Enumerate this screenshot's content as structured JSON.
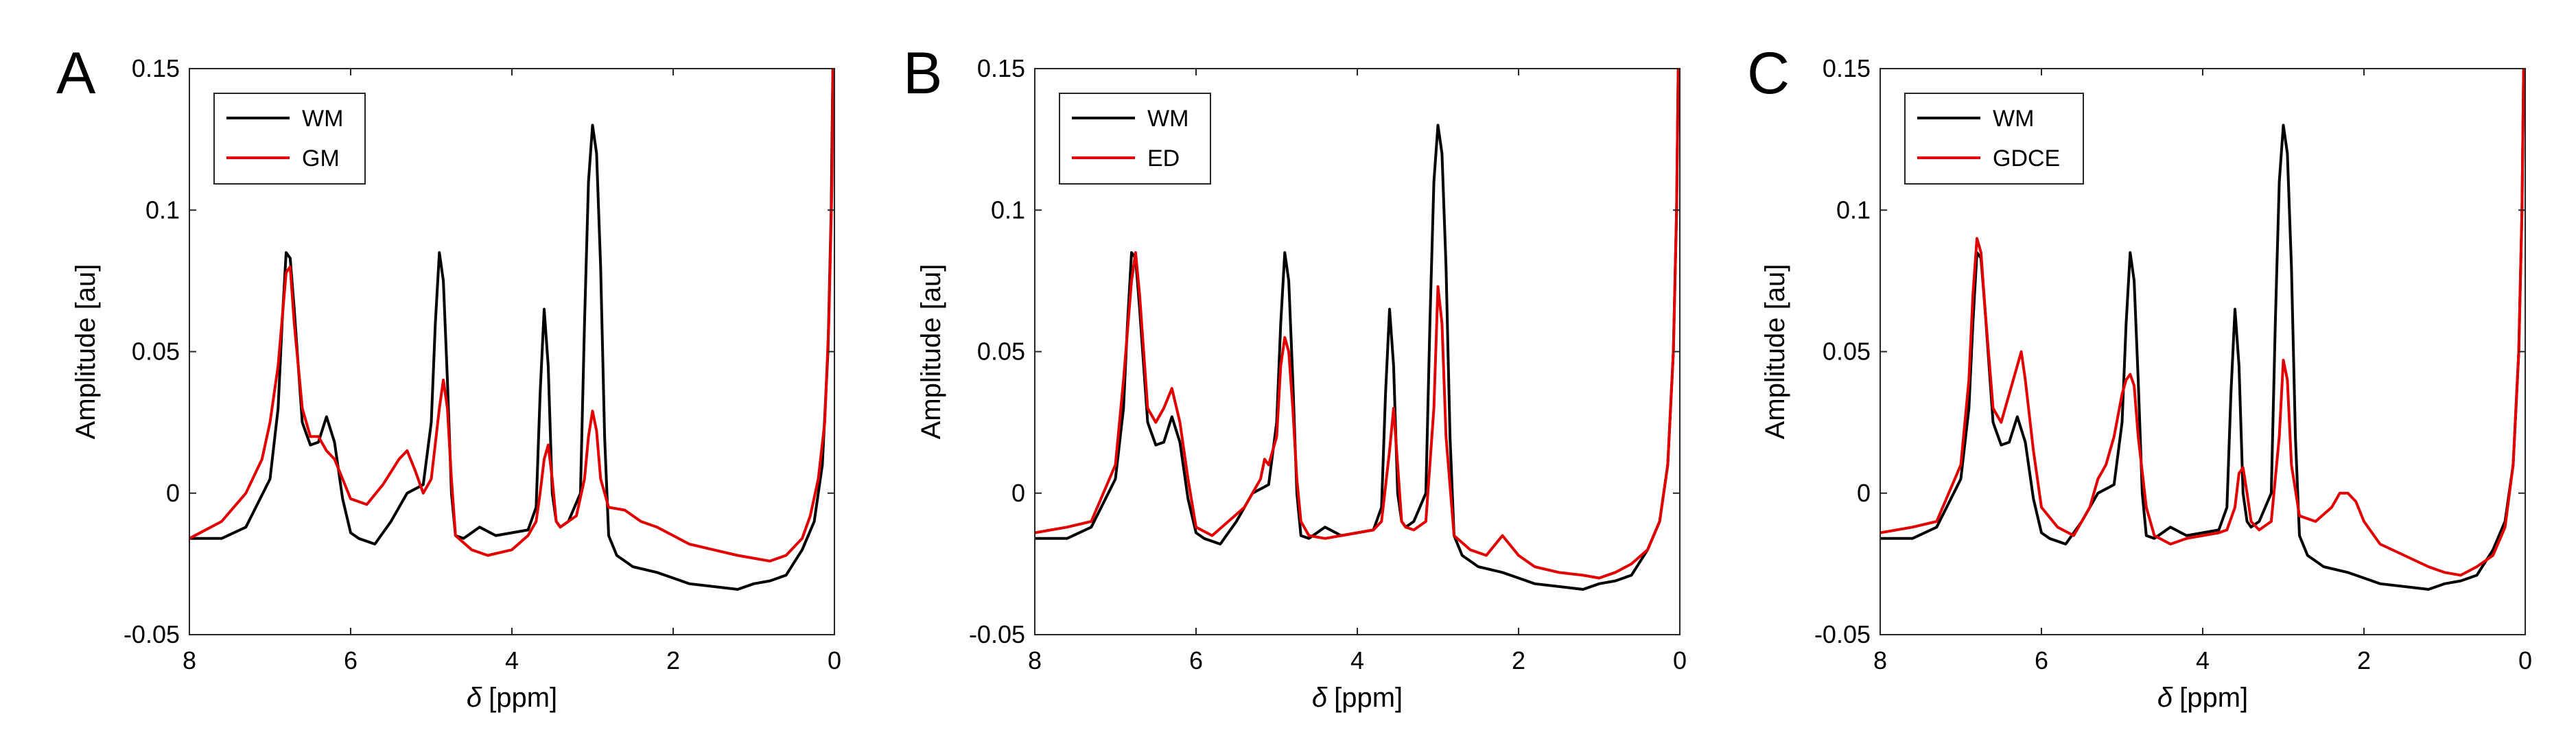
{
  "figure": {
    "description_units": "delta in ppm, amplitude in au"
  },
  "chart_data": [
    {
      "type": "line",
      "panel_label": "A",
      "xlabel_symbol": "δ",
      "xlabel_unit": "[ppm]",
      "ylabel": "Amplitude [au]",
      "xlim": [
        8,
        0
      ],
      "ylim": [
        -0.05,
        0.15
      ],
      "x_reversed": true,
      "xticks": [
        "8",
        "6",
        "4",
        "2",
        "0"
      ],
      "yticks": [
        "-0.05",
        "0",
        "0.05",
        "0.1",
        "0.15"
      ],
      "legend_position": "top-left",
      "series": [
        {
          "name": "WM",
          "color": "#000000",
          "x": [
            8.0,
            7.6,
            7.3,
            7.0,
            6.9,
            6.85,
            6.8,
            6.75,
            6.7,
            6.6,
            6.5,
            6.4,
            6.3,
            6.2,
            6.1,
            6.0,
            5.9,
            5.7,
            5.5,
            5.3,
            5.1,
            5.0,
            4.95,
            4.9,
            4.85,
            4.8,
            4.75,
            4.7,
            4.6,
            4.4,
            4.2,
            4.0,
            3.8,
            3.7,
            3.65,
            3.6,
            3.55,
            3.5,
            3.45,
            3.4,
            3.3,
            3.15,
            3.1,
            3.05,
            3.0,
            2.95,
            2.9,
            2.85,
            2.8,
            2.7,
            2.5,
            2.2,
            2.0,
            1.8,
            1.5,
            1.2,
            1.0,
            0.8,
            0.6,
            0.4,
            0.25,
            0.15,
            0.08,
            0.04,
            0.02
          ],
          "y": [
            -0.016,
            -0.016,
            -0.012,
            0.005,
            0.03,
            0.06,
            0.085,
            0.083,
            0.065,
            0.025,
            0.017,
            0.018,
            0.027,
            0.018,
            -0.002,
            -0.014,
            -0.016,
            -0.018,
            -0.01,
            0.0,
            0.003,
            0.025,
            0.06,
            0.085,
            0.075,
            0.04,
            0.0,
            -0.015,
            -0.016,
            -0.012,
            -0.015,
            -0.014,
            -0.013,
            -0.005,
            0.035,
            0.065,
            0.045,
            0.0,
            -0.01,
            -0.012,
            -0.01,
            0.0,
            0.06,
            0.11,
            0.13,
            0.12,
            0.08,
            0.02,
            -0.015,
            -0.022,
            -0.026,
            -0.028,
            -0.03,
            -0.032,
            -0.033,
            -0.034,
            -0.032,
            -0.031,
            -0.029,
            -0.02,
            -0.01,
            0.01,
            0.05,
            0.1,
            0.15
          ]
        },
        {
          "name": "GM",
          "color": "#e30000",
          "x": [
            8.0,
            7.6,
            7.3,
            7.1,
            7.0,
            6.9,
            6.8,
            6.75,
            6.7,
            6.6,
            6.5,
            6.4,
            6.3,
            6.2,
            6.1,
            6.0,
            5.8,
            5.6,
            5.4,
            5.3,
            5.2,
            5.1,
            5.0,
            4.9,
            4.85,
            4.8,
            4.75,
            4.7,
            4.5,
            4.3,
            4.0,
            3.8,
            3.7,
            3.65,
            3.6,
            3.55,
            3.5,
            3.45,
            3.4,
            3.2,
            3.1,
            3.05,
            3.0,
            2.95,
            2.9,
            2.8,
            2.6,
            2.4,
            2.2,
            2.0,
            1.8,
            1.5,
            1.2,
            1.0,
            0.8,
            0.6,
            0.4,
            0.3,
            0.2,
            0.12,
            0.07,
            0.03,
            0.02
          ],
          "y": [
            -0.016,
            -0.01,
            0.0,
            0.012,
            0.025,
            0.045,
            0.078,
            0.08,
            0.06,
            0.03,
            0.02,
            0.02,
            0.015,
            0.012,
            0.005,
            -0.002,
            -0.004,
            0.003,
            0.012,
            0.015,
            0.008,
            0.0,
            0.005,
            0.03,
            0.04,
            0.03,
            0.005,
            -0.015,
            -0.02,
            -0.022,
            -0.02,
            -0.015,
            -0.01,
            0.0,
            0.012,
            0.017,
            0.005,
            -0.01,
            -0.012,
            -0.008,
            0.005,
            0.02,
            0.029,
            0.022,
            0.005,
            -0.005,
            -0.006,
            -0.01,
            -0.012,
            -0.015,
            -0.018,
            -0.02,
            -0.022,
            -0.023,
            -0.024,
            -0.022,
            -0.016,
            -0.008,
            0.005,
            0.025,
            0.06,
            0.11,
            0.15
          ]
        }
      ]
    },
    {
      "type": "line",
      "panel_label": "B",
      "xlabel_symbol": "δ",
      "xlabel_unit": "[ppm]",
      "ylabel": "Amplitude [au]",
      "xlim": [
        8,
        0
      ],
      "ylim": [
        -0.05,
        0.15
      ],
      "x_reversed": true,
      "xticks": [
        "8",
        "6",
        "4",
        "2",
        "0"
      ],
      "yticks": [
        "-0.05",
        "0",
        "0.05",
        "0.1",
        "0.15"
      ],
      "legend_position": "top-left",
      "series": [
        {
          "name": "WM",
          "color": "#000000",
          "x": [
            8.0,
            7.6,
            7.3,
            7.0,
            6.9,
            6.85,
            6.8,
            6.75,
            6.7,
            6.6,
            6.5,
            6.4,
            6.3,
            6.2,
            6.1,
            6.0,
            5.9,
            5.7,
            5.5,
            5.3,
            5.1,
            5.0,
            4.95,
            4.9,
            4.85,
            4.8,
            4.75,
            4.7,
            4.6,
            4.4,
            4.2,
            4.0,
            3.8,
            3.7,
            3.65,
            3.6,
            3.55,
            3.5,
            3.45,
            3.4,
            3.3,
            3.15,
            3.1,
            3.05,
            3.0,
            2.95,
            2.9,
            2.85,
            2.8,
            2.7,
            2.5,
            2.2,
            2.0,
            1.8,
            1.5,
            1.2,
            1.0,
            0.8,
            0.6,
            0.4,
            0.25,
            0.15,
            0.08,
            0.04,
            0.02
          ],
          "y": [
            -0.016,
            -0.016,
            -0.012,
            0.005,
            0.03,
            0.06,
            0.085,
            0.083,
            0.065,
            0.025,
            0.017,
            0.018,
            0.027,
            0.018,
            -0.002,
            -0.014,
            -0.016,
            -0.018,
            -0.01,
            0.0,
            0.003,
            0.025,
            0.06,
            0.085,
            0.075,
            0.04,
            0.0,
            -0.015,
            -0.016,
            -0.012,
            -0.015,
            -0.014,
            -0.013,
            -0.005,
            0.035,
            0.065,
            0.045,
            0.0,
            -0.01,
            -0.012,
            -0.01,
            0.0,
            0.06,
            0.11,
            0.13,
            0.12,
            0.08,
            0.02,
            -0.015,
            -0.022,
            -0.026,
            -0.028,
            -0.03,
            -0.032,
            -0.033,
            -0.034,
            -0.032,
            -0.031,
            -0.029,
            -0.02,
            -0.01,
            0.01,
            0.05,
            0.1,
            0.15
          ]
        },
        {
          "name": "ED",
          "color": "#e30000",
          "x": [
            8.0,
            7.6,
            7.3,
            7.0,
            6.9,
            6.8,
            6.75,
            6.7,
            6.6,
            6.5,
            6.4,
            6.3,
            6.2,
            6.1,
            6.0,
            5.8,
            5.6,
            5.4,
            5.2,
            5.15,
            5.1,
            5.0,
            4.95,
            4.9,
            4.85,
            4.8,
            4.75,
            4.7,
            4.6,
            4.4,
            4.2,
            4.0,
            3.8,
            3.7,
            3.6,
            3.55,
            3.5,
            3.45,
            3.4,
            3.3,
            3.15,
            3.05,
            3.0,
            2.95,
            2.9,
            2.8,
            2.6,
            2.4,
            2.2,
            2.0,
            1.8,
            1.5,
            1.2,
            1.0,
            0.8,
            0.6,
            0.4,
            0.25,
            0.15,
            0.08,
            0.04,
            0.02
          ],
          "y": [
            -0.014,
            -0.012,
            -0.01,
            0.01,
            0.04,
            0.075,
            0.085,
            0.07,
            0.03,
            0.025,
            0.03,
            0.037,
            0.025,
            0.005,
            -0.012,
            -0.015,
            -0.01,
            -0.005,
            0.005,
            0.012,
            0.01,
            0.02,
            0.045,
            0.055,
            0.05,
            0.03,
            0.005,
            -0.01,
            -0.015,
            -0.016,
            -0.015,
            -0.014,
            -0.013,
            -0.01,
            0.015,
            0.03,
            0.01,
            -0.01,
            -0.012,
            -0.013,
            -0.01,
            0.03,
            0.073,
            0.06,
            0.02,
            -0.015,
            -0.02,
            -0.022,
            -0.015,
            -0.022,
            -0.026,
            -0.028,
            -0.029,
            -0.03,
            -0.028,
            -0.025,
            -0.02,
            -0.01,
            0.01,
            0.05,
            0.1,
            0.15
          ]
        }
      ]
    },
    {
      "type": "line",
      "panel_label": "C",
      "xlabel_symbol": "δ",
      "xlabel_unit": "[ppm]",
      "ylabel": "Amplitude [au]",
      "xlim": [
        8,
        0
      ],
      "ylim": [
        -0.05,
        0.15
      ],
      "x_reversed": true,
      "xticks": [
        "8",
        "6",
        "4",
        "2",
        "0"
      ],
      "yticks": [
        "-0.05",
        "0",
        "0.05",
        "0.1",
        "0.15"
      ],
      "legend_position": "top-left",
      "series": [
        {
          "name": "WM",
          "color": "#000000",
          "x": [
            8.0,
            7.6,
            7.3,
            7.0,
            6.9,
            6.85,
            6.8,
            6.75,
            6.7,
            6.6,
            6.5,
            6.4,
            6.3,
            6.2,
            6.1,
            6.0,
            5.9,
            5.7,
            5.5,
            5.3,
            5.1,
            5.0,
            4.95,
            4.9,
            4.85,
            4.8,
            4.75,
            4.7,
            4.6,
            4.4,
            4.2,
            4.0,
            3.8,
            3.7,
            3.65,
            3.6,
            3.55,
            3.5,
            3.45,
            3.4,
            3.3,
            3.15,
            3.1,
            3.05,
            3.0,
            2.95,
            2.9,
            2.85,
            2.8,
            2.7,
            2.5,
            2.2,
            2.0,
            1.8,
            1.5,
            1.2,
            1.0,
            0.8,
            0.6,
            0.4,
            0.25,
            0.15,
            0.08,
            0.04,
            0.02
          ],
          "y": [
            -0.016,
            -0.016,
            -0.012,
            0.005,
            0.03,
            0.06,
            0.085,
            0.083,
            0.065,
            0.025,
            0.017,
            0.018,
            0.027,
            0.018,
            -0.002,
            -0.014,
            -0.016,
            -0.018,
            -0.01,
            0.0,
            0.003,
            0.025,
            0.06,
            0.085,
            0.075,
            0.04,
            0.0,
            -0.015,
            -0.016,
            -0.012,
            -0.015,
            -0.014,
            -0.013,
            -0.005,
            0.035,
            0.065,
            0.045,
            0.0,
            -0.01,
            -0.012,
            -0.01,
            0.0,
            0.06,
            0.11,
            0.13,
            0.12,
            0.08,
            0.02,
            -0.015,
            -0.022,
            -0.026,
            -0.028,
            -0.03,
            -0.032,
            -0.033,
            -0.034,
            -0.032,
            -0.031,
            -0.029,
            -0.02,
            -0.01,
            0.01,
            0.05,
            0.1,
            0.15
          ]
        },
        {
          "name": "GDCE",
          "color": "#e30000",
          "x": [
            8.0,
            7.6,
            7.3,
            7.0,
            6.9,
            6.85,
            6.8,
            6.75,
            6.7,
            6.6,
            6.5,
            6.4,
            6.3,
            6.25,
            6.2,
            6.1,
            6.0,
            5.8,
            5.6,
            5.4,
            5.3,
            5.2,
            5.1,
            5.0,
            4.95,
            4.9,
            4.85,
            4.8,
            4.7,
            4.6,
            4.4,
            4.2,
            4.0,
            3.8,
            3.7,
            3.6,
            3.55,
            3.5,
            3.45,
            3.4,
            3.3,
            3.15,
            3.05,
            3.0,
            2.95,
            2.9,
            2.8,
            2.6,
            2.4,
            2.3,
            2.2,
            2.1,
            2.0,
            1.8,
            1.5,
            1.2,
            1.0,
            0.8,
            0.6,
            0.4,
            0.25,
            0.15,
            0.08,
            0.04,
            0.02
          ],
          "y": [
            -0.014,
            -0.012,
            -0.01,
            0.01,
            0.04,
            0.07,
            0.09,
            0.085,
            0.065,
            0.03,
            0.025,
            0.035,
            0.045,
            0.05,
            0.04,
            0.015,
            -0.005,
            -0.012,
            -0.015,
            -0.005,
            0.005,
            0.01,
            0.02,
            0.035,
            0.04,
            0.042,
            0.038,
            0.02,
            -0.005,
            -0.015,
            -0.018,
            -0.016,
            -0.015,
            -0.014,
            -0.013,
            -0.005,
            0.007,
            0.009,
            0.0,
            -0.01,
            -0.013,
            -0.01,
            0.02,
            0.047,
            0.04,
            0.01,
            -0.008,
            -0.01,
            -0.005,
            0.0,
            0.0,
            -0.003,
            -0.01,
            -0.018,
            -0.022,
            -0.026,
            -0.028,
            -0.029,
            -0.026,
            -0.022,
            -0.012,
            0.01,
            0.05,
            0.1,
            0.15
          ]
        }
      ]
    }
  ]
}
